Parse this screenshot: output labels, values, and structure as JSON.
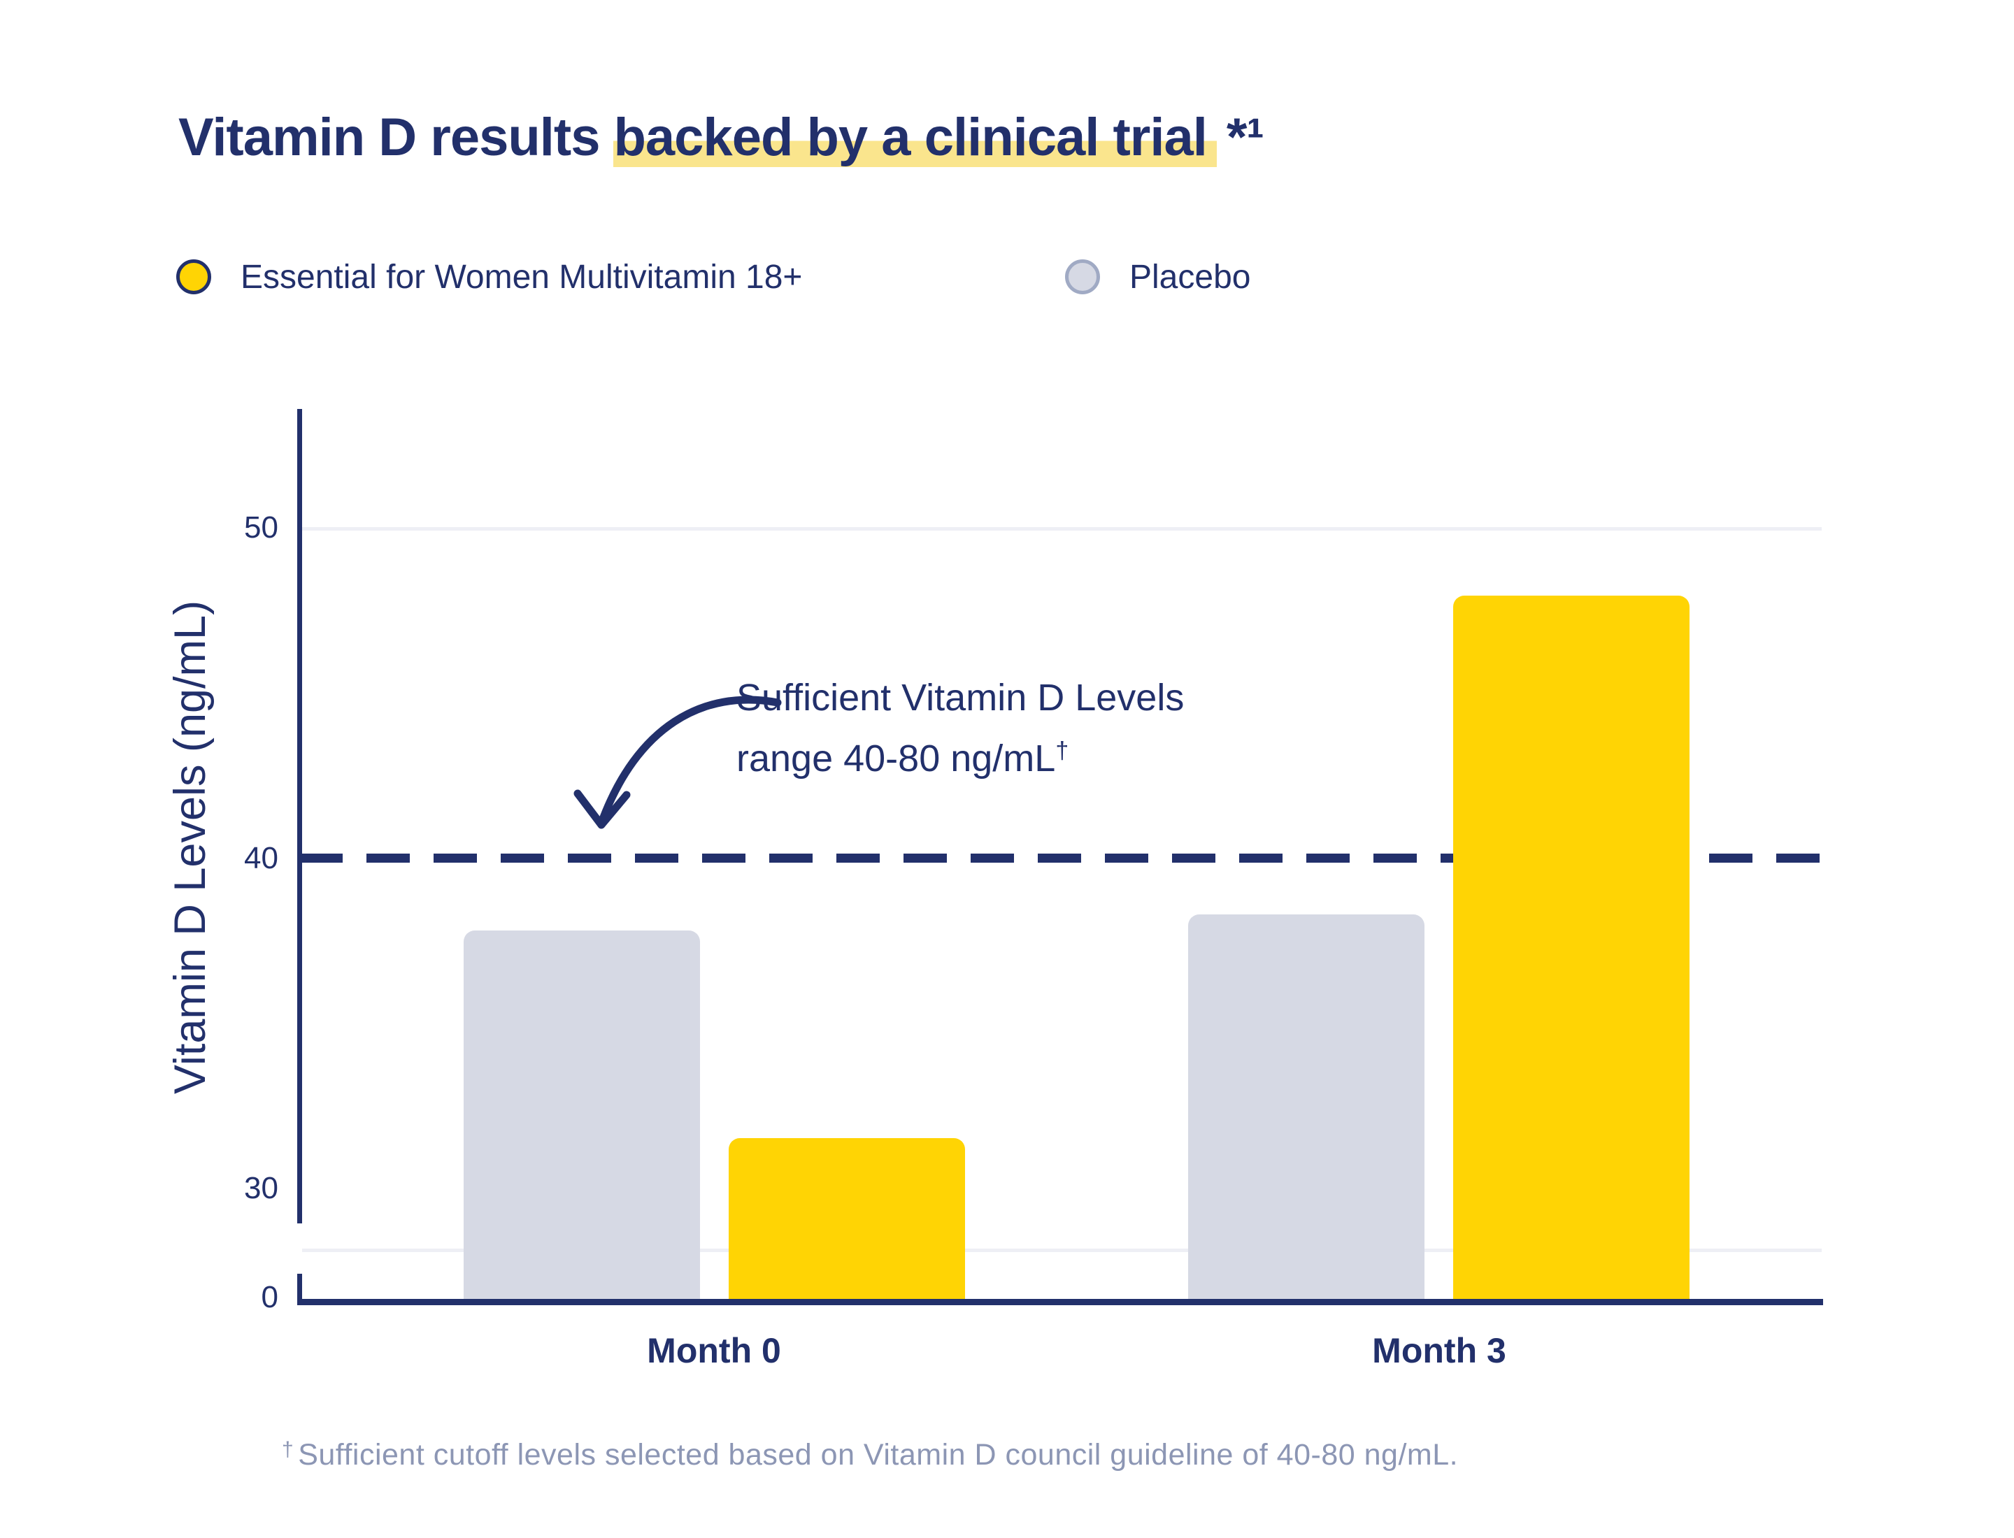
{
  "header": {
    "title_pre": "Vitamin D results",
    "title_highlight": "backed by a clinical trial",
    "title_suffix": "*¹"
  },
  "chart_data": {
    "type": "bar",
    "title": "Vitamin D results backed by a clinical trial *¹",
    "categories": [
      "Month 0",
      "Month 3"
    ],
    "series": [
      {
        "name": "Placebo",
        "color": "#D6D9E4",
        "values": [
          37.8,
          38.3
        ]
      },
      {
        "name": "Essential for Women Multivitamin 18+",
        "color": "#FFD404",
        "values": [
          31.5,
          48
        ]
      }
    ],
    "ylabel": "Vitamin D Levels (ng/mL)",
    "yticks": {
      "t50": "50",
      "t40": "40",
      "t30": "30",
      "t0": "0"
    },
    "ylim": [
      0,
      53
    ],
    "axis_break_between": [
      0,
      30
    ],
    "grid": "horizontal",
    "legend_position": "top-left",
    "threshold": {
      "value": 40,
      "style": "dashed",
      "color": "#22306B"
    },
    "annotation": {
      "line1": "Sufficient Vitamin D Levels",
      "line2": "range 40-80 ng/mL",
      "dagger": "†"
    }
  },
  "footnote": {
    "dagger": "†",
    "text": "Sufficient cutoff levels selected based on Vitamin D council guideline of 40-80 ng/mL."
  },
  "colors": {
    "navy": "#22306B",
    "multivitamin_yellow": "#FFD404",
    "placebo_gray": "#D6D9E4",
    "title_highlight": "#FAE58D",
    "gridline": "#EEEFF5",
    "footnote_gray": "#8C96B4"
  }
}
